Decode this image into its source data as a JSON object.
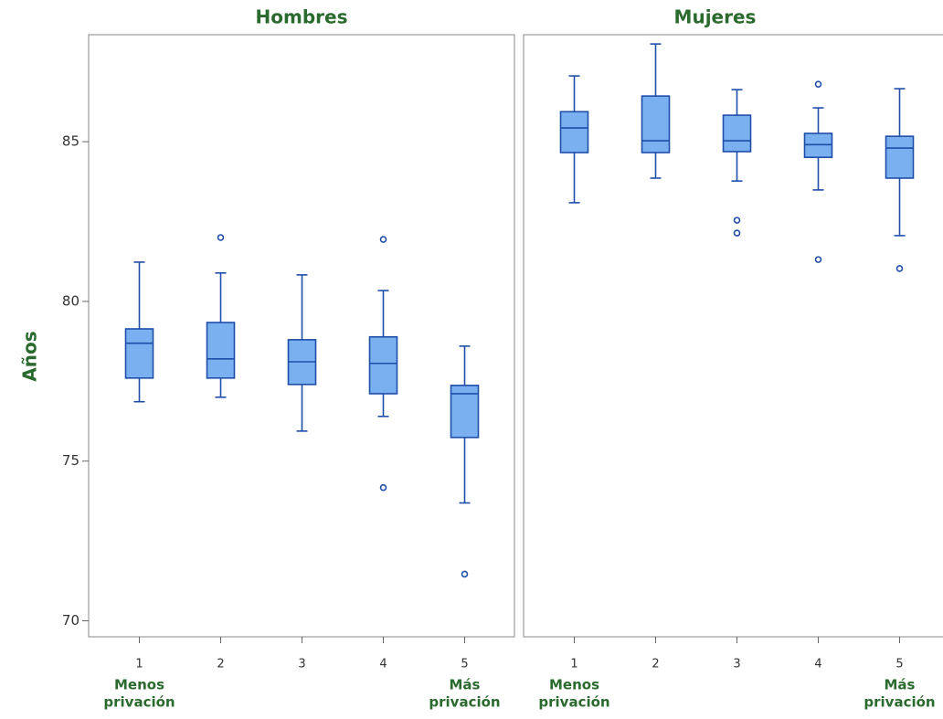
{
  "chart_data": [
    {
      "type": "box",
      "title": "Hombres",
      "ylabel": "Años",
      "categories": [
        "1",
        "2",
        "3",
        "4",
        "5"
      ],
      "annotations": [
        {
          "category": 0,
          "lines": [
            "Menos",
            "privación"
          ]
        },
        {
          "category": 4,
          "lines": [
            "Más",
            "privación"
          ]
        }
      ],
      "ylim": [
        69.5,
        88.35
      ],
      "yticks": [
        70,
        75,
        80,
        85
      ],
      "fill": "#7aaff0",
      "color": "#1f4ea8",
      "boxes": [
        {
          "whislo": 76.86,
          "q1": 77.6,
          "med": 78.69,
          "q3": 79.14,
          "whishi": 81.23,
          "fliers": []
        },
        {
          "whislo": 77.0,
          "q1": 77.6,
          "med": 78.2,
          "q3": 79.34,
          "whishi": 80.89,
          "fliers": [
            82.0
          ]
        },
        {
          "whislo": 75.94,
          "q1": 77.4,
          "med": 78.11,
          "q3": 78.8,
          "whishi": 80.83,
          "fliers": []
        },
        {
          "whislo": 76.4,
          "q1": 77.11,
          "med": 78.06,
          "q3": 78.89,
          "whishi": 80.34,
          "fliers": [
            81.94,
            74.17
          ]
        },
        {
          "whislo": 73.69,
          "q1": 75.74,
          "med": 77.11,
          "q3": 77.37,
          "whishi": 78.6,
          "fliers": [
            71.46
          ]
        }
      ]
    },
    {
      "type": "box",
      "title": "Mujeres",
      "categories": [
        "1",
        "2",
        "3",
        "4",
        "5"
      ],
      "annotations": [
        {
          "category": 0,
          "lines": [
            "Menos",
            "privación"
          ]
        },
        {
          "category": 4,
          "lines": [
            "Más",
            "privación"
          ]
        }
      ],
      "ylim": [
        69.5,
        88.35
      ],
      "fill": "#7aaff0",
      "color": "#1f4ea8",
      "boxes": [
        {
          "whislo": 83.09,
          "q1": 84.66,
          "med": 85.43,
          "q3": 85.94,
          "whishi": 87.06,
          "fliers": []
        },
        {
          "whislo": 83.86,
          "q1": 84.66,
          "med": 85.03,
          "q3": 86.43,
          "whishi": 88.06,
          "fliers": []
        },
        {
          "whislo": 83.77,
          "q1": 84.69,
          "med": 85.03,
          "q3": 85.83,
          "whishi": 86.63,
          "fliers": [
            82.54,
            82.14
          ]
        },
        {
          "whislo": 83.49,
          "q1": 84.51,
          "med": 84.91,
          "q3": 85.26,
          "whishi": 86.06,
          "fliers": [
            86.8,
            81.31
          ]
        },
        {
          "whislo": 82.06,
          "q1": 83.86,
          "med": 84.8,
          "q3": 85.17,
          "whishi": 86.66,
          "fliers": [
            81.03
          ]
        }
      ]
    }
  ]
}
